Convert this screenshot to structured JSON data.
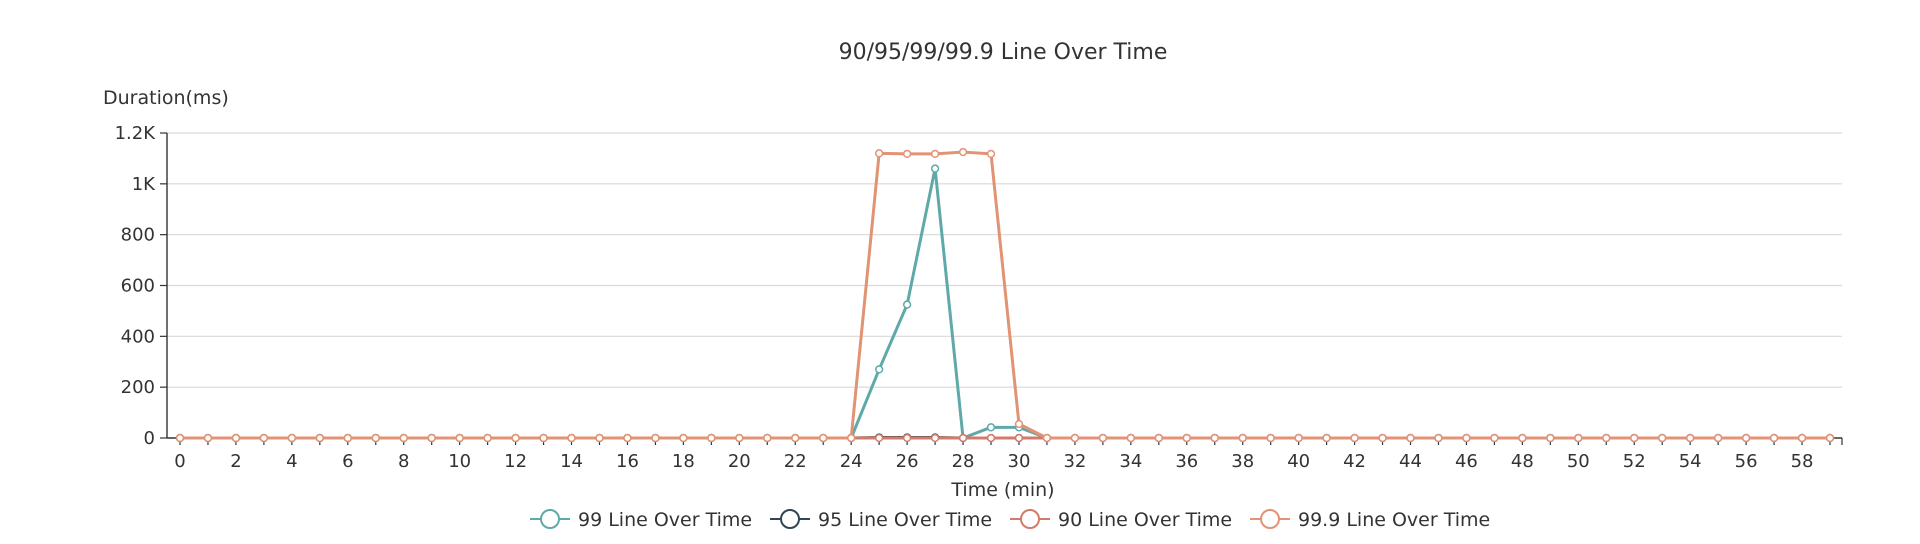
{
  "chart_data": {
    "type": "line",
    "title": "90/95/99/99.9 Line Over Time",
    "xlabel": "Time (min)",
    "ylabel": "Duration(ms)",
    "xlim": [
      0,
      59
    ],
    "ylim": [
      0,
      1200
    ],
    "x_ticks": [
      0,
      2,
      4,
      6,
      8,
      10,
      12,
      14,
      16,
      18,
      20,
      22,
      24,
      26,
      28,
      30,
      32,
      34,
      36,
      38,
      40,
      42,
      44,
      46,
      48,
      50,
      52,
      54,
      56,
      58
    ],
    "y_ticks": [
      {
        "value": 0,
        "label": "0"
      },
      {
        "value": 200,
        "label": "200"
      },
      {
        "value": 400,
        "label": "400"
      },
      {
        "value": 600,
        "label": "600"
      },
      {
        "value": 800,
        "label": "800"
      },
      {
        "value": 1000,
        "label": "1K"
      },
      {
        "value": 1200,
        "label": "1.2K"
      }
    ],
    "grid": true,
    "legend_position": "bottom",
    "x": [
      0,
      1,
      2,
      3,
      4,
      5,
      6,
      7,
      8,
      9,
      10,
      11,
      12,
      13,
      14,
      15,
      16,
      17,
      18,
      19,
      20,
      21,
      22,
      23,
      24,
      25,
      26,
      27,
      28,
      29,
      30,
      31,
      32,
      33,
      34,
      35,
      36,
      37,
      38,
      39,
      40,
      41,
      42,
      43,
      44,
      45,
      46,
      47,
      48,
      49,
      50,
      51,
      52,
      53,
      54,
      55,
      56,
      57,
      58,
      59
    ],
    "series": [
      {
        "name": "99 Line Over Time",
        "color": "#5fa9a8",
        "values": [
          0,
          0,
          0,
          0,
          0,
          0,
          0,
          0,
          0,
          0,
          0,
          0,
          0,
          0,
          0,
          0,
          0,
          0,
          0,
          0,
          0,
          0,
          0,
          0,
          0,
          270,
          525,
          1060,
          0,
          42,
          42,
          0,
          0,
          0,
          0,
          0,
          0,
          0,
          0,
          0,
          0,
          0,
          0,
          0,
          0,
          0,
          0,
          0,
          0,
          0,
          0,
          0,
          0,
          0,
          0,
          0,
          0,
          0,
          0,
          0
        ]
      },
      {
        "name": "95 Line Over Time",
        "color": "#2e4655",
        "values": [
          0,
          0,
          0,
          0,
          0,
          0,
          0,
          0,
          0,
          0,
          0,
          0,
          0,
          0,
          0,
          0,
          0,
          0,
          0,
          0,
          0,
          0,
          0,
          0,
          0,
          2,
          2,
          2,
          0,
          0,
          0,
          0,
          0,
          0,
          0,
          0,
          0,
          0,
          0,
          0,
          0,
          0,
          0,
          0,
          0,
          0,
          0,
          0,
          0,
          0,
          0,
          0,
          0,
          0,
          0,
          0,
          0,
          0,
          0,
          0
        ]
      },
      {
        "name": "90 Line Over Time",
        "color": "#d47a6a",
        "values": [
          0,
          0,
          0,
          0,
          0,
          0,
          0,
          0,
          0,
          0,
          0,
          0,
          0,
          0,
          0,
          0,
          0,
          0,
          0,
          0,
          0,
          0,
          0,
          0,
          0,
          0,
          0,
          0,
          0,
          0,
          0,
          0,
          0,
          0,
          0,
          0,
          0,
          0,
          0,
          0,
          0,
          0,
          0,
          0,
          0,
          0,
          0,
          0,
          0,
          0,
          0,
          0,
          0,
          0,
          0,
          0,
          0,
          0,
          0,
          0
        ]
      },
      {
        "name": "99.9 Line Over Time",
        "color": "#e19374",
        "values": [
          0,
          0,
          0,
          0,
          0,
          0,
          0,
          0,
          0,
          0,
          0,
          0,
          0,
          0,
          0,
          0,
          0,
          0,
          0,
          0,
          0,
          0,
          0,
          0,
          0,
          1120,
          1118,
          1118,
          1125,
          1118,
          55,
          0,
          0,
          0,
          0,
          0,
          0,
          0,
          0,
          0,
          0,
          0,
          0,
          0,
          0,
          0,
          0,
          0,
          0,
          0,
          0,
          0,
          0,
          0,
          0,
          0,
          0,
          0,
          0,
          0
        ]
      }
    ]
  }
}
